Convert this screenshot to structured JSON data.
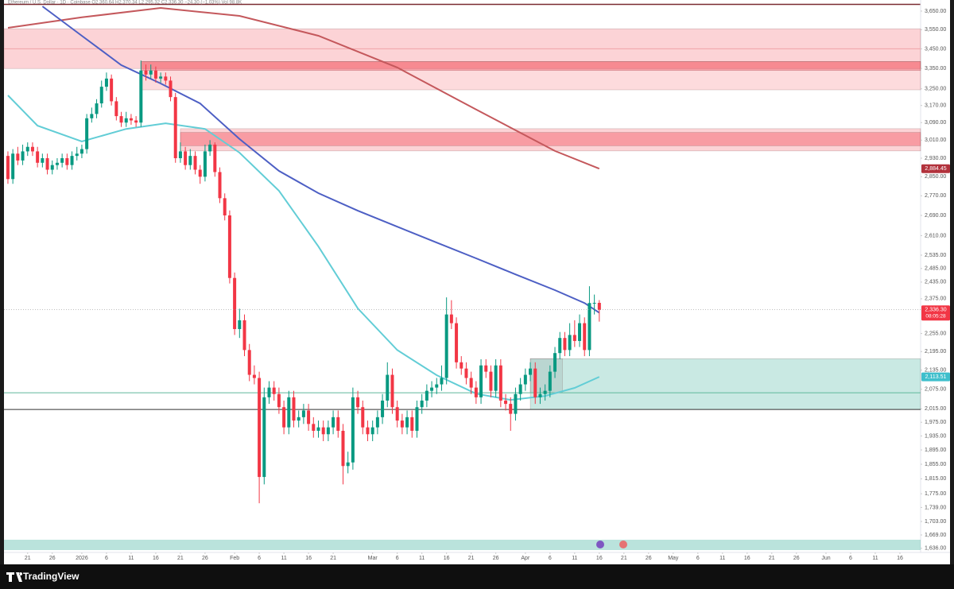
{
  "chart_data": {
    "type": "candlestick",
    "header": "Ethereum / U.S. Dollar · 1D · Coinbase   O2,360.64 H2,370.34 L2,295.32 C2,336.30 −24.30 (−1.03%)   Vol 98.8K",
    "logo": "TradingView",
    "log_scale": true,
    "grid": false,
    "xlim": [
      -0.8,
      185.2
    ],
    "ylim": [
      1626,
      3689
    ],
    "xticks": [
      {
        "value": 4,
        "label": "21"
      },
      {
        "value": 9,
        "label": "26"
      },
      {
        "value": 15,
        "label": "2026"
      },
      {
        "value": 20,
        "label": "6"
      },
      {
        "value": 25,
        "label": "11"
      },
      {
        "value": 30,
        "label": "16"
      },
      {
        "value": 35,
        "label": "21"
      },
      {
        "value": 40,
        "label": "26"
      },
      {
        "value": 46,
        "label": "Feb"
      },
      {
        "value": 51,
        "label": "6"
      },
      {
        "value": 56,
        "label": "11"
      },
      {
        "value": 61,
        "label": "16"
      },
      {
        "value": 66,
        "label": "21"
      },
      {
        "value": 74,
        "label": "Mar"
      },
      {
        "value": 79,
        "label": "6"
      },
      {
        "value": 84,
        "label": "11"
      },
      {
        "value": 89,
        "label": "16"
      },
      {
        "value": 94,
        "label": "21"
      },
      {
        "value": 99,
        "label": "26"
      },
      {
        "value": 105,
        "label": "Apr"
      },
      {
        "value": 110,
        "label": "6"
      },
      {
        "value": 115,
        "label": "11"
      },
      {
        "value": 120,
        "label": "16"
      },
      {
        "value": 125,
        "label": "21"
      },
      {
        "value": 130,
        "label": "26"
      },
      {
        "value": 135,
        "label": "May"
      },
      {
        "value": 140,
        "label": "6"
      },
      {
        "value": 145,
        "label": "11"
      },
      {
        "value": 150,
        "label": "16"
      },
      {
        "value": 155,
        "label": "21"
      },
      {
        "value": 160,
        "label": "26"
      },
      {
        "value": 166,
        "label": "Jun"
      },
      {
        "value": 171,
        "label": "6"
      },
      {
        "value": 176,
        "label": "11"
      },
      {
        "value": 181,
        "label": "16"
      }
    ],
    "yticks": [
      {
        "value": 3650,
        "label": "3,650.00"
      },
      {
        "value": 3550,
        "label": "3,550.00"
      },
      {
        "value": 3450,
        "label": "3,450.00"
      },
      {
        "value": 3350,
        "label": "3,350.00"
      },
      {
        "value": 3250,
        "label": "3,250.00"
      },
      {
        "value": 3170,
        "label": "3,170.00"
      },
      {
        "value": 3090,
        "label": "3,090.00"
      },
      {
        "value": 3010,
        "label": "3,010.00"
      },
      {
        "value": 2930,
        "label": "2,930.00"
      },
      {
        "value": 2850,
        "label": "2,850.00"
      },
      {
        "value": 2770,
        "label": "2,770.00"
      },
      {
        "value": 2690,
        "label": "2,690.00"
      },
      {
        "value": 2610,
        "label": "2,610.00"
      },
      {
        "value": 2535,
        "label": "2,535.00"
      },
      {
        "value": 2485,
        "label": "2,485.00"
      },
      {
        "value": 2435,
        "label": "2,435.00"
      },
      {
        "value": 2375,
        "label": "2,375.00"
      },
      {
        "value": 2255,
        "label": "2,255.00"
      },
      {
        "value": 2195,
        "label": "2,195.00"
      },
      {
        "value": 2135,
        "label": "2,135.00"
      },
      {
        "value": 2075,
        "label": "2,075.00"
      },
      {
        "value": 2015,
        "label": "2,015.00"
      },
      {
        "value": 1975,
        "label": "1,975.00"
      },
      {
        "value": 1935,
        "label": "1,935.00"
      },
      {
        "value": 1895,
        "label": "1,895.00"
      },
      {
        "value": 1855,
        "label": "1,855.00"
      },
      {
        "value": 1815,
        "label": "1,815.00"
      },
      {
        "value": 1775,
        "label": "1,775.00"
      },
      {
        "value": 1739,
        "label": "1,739.00"
      },
      {
        "value": 1703,
        "label": "1,703.00"
      },
      {
        "value": 1669,
        "label": "1,669.00"
      },
      {
        "value": 1636,
        "label": "1,636.00"
      }
    ],
    "zones": [
      {
        "low": 3350,
        "high": 3555,
        "color": "rgba(242,54,69,0.22)"
      },
      {
        "low": 3245,
        "high": 3385,
        "start": 27,
        "color": "rgba(242,54,69,0.18)"
      },
      {
        "low": 3340,
        "high": 3385,
        "start": 27,
        "color": "rgba(242,54,69,0.35)"
      },
      {
        "low": 2962,
        "high": 3062,
        "start": 35,
        "color": "rgba(242,54,69,0.22)"
      },
      {
        "low": 2985,
        "high": 3045,
        "start": 35,
        "color": "rgba(242,54,69,0.35)"
      },
      {
        "low": 2013,
        "high": 2172,
        "start": 106,
        "color": "rgba(8,153,129,0.22)"
      },
      {
        "low": 2064,
        "high": 2172,
        "start": 106,
        "end": 112.5,
        "color": "rgba(120,130,130,0.18)"
      }
    ],
    "levels": [
      {
        "value": 3450,
        "color": "#f0a3a8"
      },
      {
        "value": 2064,
        "color": "#5fb89a"
      },
      {
        "value": 2013,
        "color": "#333333"
      }
    ],
    "candles": {
      "up_color": "#089981",
      "down_color": "#f23645",
      "open": [
        2940,
        2840,
        2950,
        2920,
        2960,
        2980,
        2960,
        2910,
        2930,
        2880,
        2900,
        2910,
        2930,
        2900,
        2940,
        2950,
        2970,
        3110,
        3130,
        3180,
        3260,
        3300,
        3190,
        3120,
        3090,
        3110,
        3100,
        3090,
        3340,
        3320,
        3340,
        3300,
        3310,
        3290,
        3210,
        2930,
        2960,
        2900,
        2940,
        2880,
        2850,
        2960,
        2990,
        2870,
        2760,
        2690,
        2450,
        2270,
        2300,
        2200,
        2120,
        2110,
        1820,
        2050,
        2080,
        2060,
        2020,
        1960,
        2050,
        1980,
        1990,
        2010,
        1970,
        1950,
        1960,
        1940,
        1960,
        1990,
        1950,
        1850,
        1860,
        2050,
        2020,
        1960,
        1940,
        1960,
        1990,
        2040,
        2120,
        2020,
        1980,
        1960,
        1990,
        1950,
        2020,
        2040,
        2070,
        2080,
        2090,
        2110,
        2320,
        2290,
        2160,
        2140,
        2110,
        2080,
        2050,
        2150,
        2130,
        2070,
        2150,
        2040,
        2030,
        2000,
        2060,
        2090,
        2120,
        2140,
        2050,
        2060,
        2070,
        2130,
        2190,
        2240,
        2200,
        2250,
        2230,
        2290,
        2200,
        2360,
        2360.64
      ],
      "high": [
        2960,
        2970,
        2980,
        2990,
        3000,
        3000,
        2980,
        2950,
        2950,
        2920,
        2930,
        2950,
        2950,
        2960,
        2980,
        2990,
        3130,
        3160,
        3200,
        3290,
        3330,
        3320,
        3210,
        3140,
        3140,
        3130,
        3120,
        3390,
        3370,
        3370,
        3360,
        3330,
        3330,
        3310,
        3230,
        3000,
        2980,
        2970,
        2960,
        2900,
        2990,
        3010,
        3000,
        2890,
        2780,
        2710,
        2470,
        2340,
        2320,
        2220,
        2150,
        2130,
        2080,
        2100,
        2100,
        2080,
        2040,
        2070,
        2070,
        2010,
        2030,
        2030,
        1990,
        1980,
        1980,
        1980,
        2010,
        2010,
        1970,
        1890,
        2080,
        2070,
        2040,
        1980,
        1980,
        2010,
        2060,
        2160,
        2140,
        2040,
        2000,
        2010,
        2010,
        2040,
        2060,
        2090,
        2100,
        2110,
        2150,
        2380,
        2370,
        2310,
        2180,
        2160,
        2130,
        2100,
        2170,
        2170,
        2150,
        2170,
        2170,
        2060,
        2050,
        2080,
        2110,
        2140,
        2160,
        2160,
        2080,
        2090,
        2150,
        2210,
        2260,
        2260,
        2290,
        2300,
        2320,
        2310,
        2420,
        2390,
        2370.34
      ],
      "low": [
        2820,
        2820,
        2900,
        2900,
        2940,
        2940,
        2890,
        2890,
        2860,
        2860,
        2880,
        2890,
        2880,
        2880,
        2920,
        2930,
        2950,
        3090,
        3110,
        3160,
        3240,
        3170,
        3100,
        3070,
        3070,
        3080,
        3070,
        3070,
        3290,
        3300,
        3280,
        3280,
        3270,
        3190,
        2910,
        2910,
        2880,
        2880,
        2860,
        2820,
        2830,
        2940,
        2850,
        2740,
        2670,
        2430,
        2250,
        2240,
        2180,
        2100,
        2090,
        1750,
        1800,
        2030,
        2040,
        2000,
        1940,
        1940,
        1960,
        1960,
        1970,
        1950,
        1930,
        1930,
        1920,
        1920,
        1940,
        1930,
        1800,
        1830,
        1840,
        2000,
        1940,
        1920,
        1920,
        1940,
        1970,
        2020,
        2000,
        1960,
        1940,
        1940,
        1930,
        1930,
        2000,
        2020,
        2050,
        2060,
        2070,
        2090,
        2270,
        2140,
        2120,
        2090,
        2060,
        2030,
        2030,
        2110,
        2050,
        2050,
        2020,
        2010,
        1950,
        1980,
        2040,
        2070,
        2100,
        2030,
        2030,
        2040,
        2050,
        2110,
        2170,
        2180,
        2180,
        2210,
        2210,
        2180,
        2180,
        2320,
        2295.32
      ],
      "close": [
        2840,
        2950,
        2920,
        2960,
        2980,
        2960,
        2910,
        2930,
        2880,
        2900,
        2910,
        2930,
        2900,
        2940,
        2950,
        2970,
        3110,
        3130,
        3180,
        3260,
        3300,
        3190,
        3120,
        3090,
        3110,
        3100,
        3090,
        3340,
        3320,
        3340,
        3300,
        3310,
        3290,
        3210,
        2930,
        2960,
        2900,
        2940,
        2880,
        2850,
        2960,
        2990,
        2870,
        2760,
        2690,
        2450,
        2270,
        2300,
        2200,
        2120,
        2110,
        1820,
        2050,
        2080,
        2060,
        2020,
        1960,
        2050,
        1980,
        1990,
        2010,
        1970,
        1950,
        1960,
        1940,
        1960,
        1990,
        1950,
        1850,
        1860,
        2050,
        2020,
        1960,
        1940,
        1960,
        1990,
        2040,
        2120,
        2020,
        1980,
        1960,
        1990,
        1950,
        2020,
        2040,
        2070,
        2080,
        2090,
        2110,
        2320,
        2290,
        2160,
        2140,
        2110,
        2080,
        2050,
        2150,
        2130,
        2070,
        2150,
        2040,
        2030,
        2000,
        2060,
        2090,
        2120,
        2140,
        2050,
        2060,
        2070,
        2130,
        2190,
        2240,
        2200,
        2250,
        2230,
        2290,
        2200,
        2360,
        2360.64,
        2336.3
      ],
      "last_label": "2,336.30",
      "countdown": "08:05:28"
    },
    "series": [
      {
        "color": "#c4585c",
        "label_color": "#b2323c",
        "last_label": "2,884.45",
        "x": [
          0,
          15,
          31,
          47,
          63,
          79,
          95,
          111,
          120
        ],
        "values": [
          3560,
          3616,
          3667,
          3624,
          3518,
          3355,
          3151,
          2962,
          2884.45
        ]
      },
      {
        "color": "#4d5fc4",
        "label_color": "#2941a8",
        "last_label": "2,326.10",
        "x": [
          7,
          15,
          23,
          31,
          39,
          47,
          55,
          63,
          71,
          79,
          87,
          95,
          103,
          111,
          117,
          120
        ],
        "values": [
          3676,
          3518,
          3367,
          3276,
          3180,
          3015,
          2875,
          2781,
          2709,
          2645,
          2583,
          2523,
          2463,
          2406,
          2360,
          2326.1
        ]
      },
      {
        "color": "#62cdd6",
        "label_color": "#3fbfcc",
        "last_label": "2,113.51",
        "x": [
          0,
          6,
          15,
          24,
          32,
          40,
          47,
          55,
          63,
          71,
          79,
          87,
          95,
          102,
          109,
          115,
          120
        ],
        "values": [
          3218,
          3076,
          3004,
          3061,
          3087,
          3061,
          2954,
          2791,
          2568,
          2341,
          2200,
          2119,
          2061,
          2042,
          2054,
          2079,
          2113.51
        ]
      }
    ]
  }
}
